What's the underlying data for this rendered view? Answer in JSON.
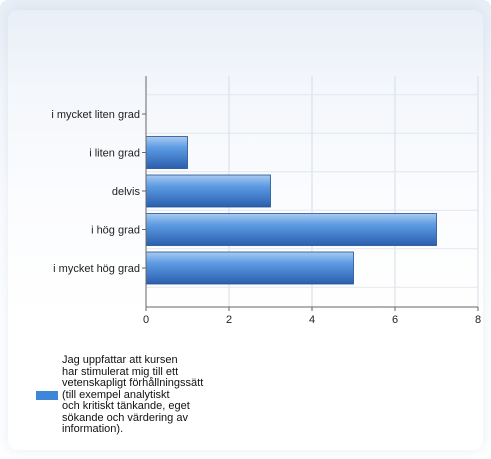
{
  "chart_data": {
    "type": "bar",
    "orientation": "horizontal",
    "categories": [
      "i mycket liten grad",
      "i liten grad",
      "delvis",
      "i hög grad",
      "i mycket hög grad"
    ],
    "series": [
      {
        "name": "Jag uppfattar att kursen\nhar stimulerat mig till ett\nvetenskapligt förhållningssätt\n(till exempel analytiskt\noch kritiskt tänkande, eget\nsökande och värdering av\ninformation).",
        "values": [
          0,
          1,
          3,
          7,
          5
        ]
      }
    ],
    "xticks": [
      "0",
      "2",
      "4",
      "6",
      "8"
    ],
    "xlim": [
      0,
      8
    ],
    "grid": true,
    "legend_position": "bottom",
    "bar_color": "#3f7fcf"
  }
}
